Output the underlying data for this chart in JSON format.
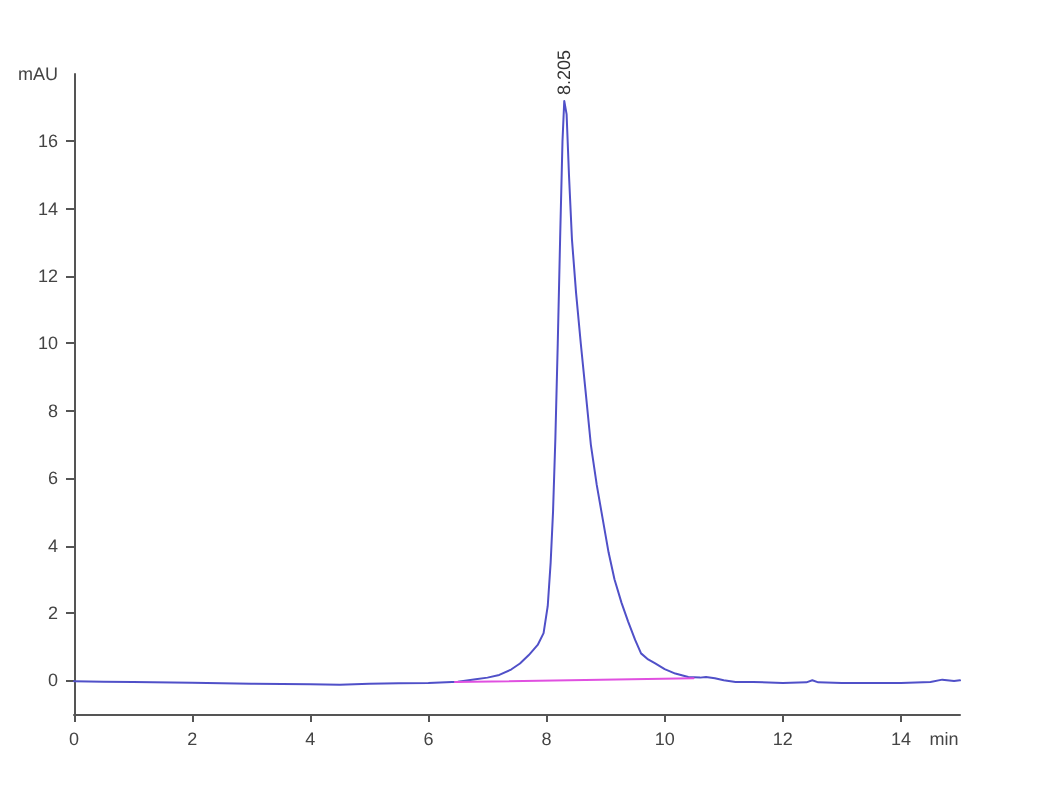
{
  "chart_data": {
    "type": "line",
    "xlabel": "min",
    "ylabel": "mAU",
    "xlim": [
      0,
      15
    ],
    "ylim": [
      -1,
      18
    ],
    "xticks": [
      0,
      2,
      4,
      6,
      8,
      10,
      12,
      14
    ],
    "yticks": [
      0,
      2,
      4,
      6,
      8,
      10,
      12,
      14,
      16
    ],
    "marker": "none",
    "line_style": "solid",
    "series": [
      {
        "color": "#5050c8",
        "x": [
          0,
          0.5,
          1,
          2,
          3,
          4,
          4.5,
          5,
          5.5,
          6,
          6.5,
          6.8,
          7,
          7.2,
          7.4,
          7.55,
          7.7,
          7.85,
          7.95,
          8.02,
          8.07,
          8.11,
          8.15,
          8.19,
          8.23,
          8.27,
          8.3,
          8.34,
          8.38,
          8.43,
          8.5,
          8.58,
          8.66,
          8.75,
          8.85,
          8.95,
          9.05,
          9.15,
          9.27,
          9.38,
          9.5,
          9.6,
          9.72,
          9.84,
          10,
          10.18,
          10.4,
          10.6,
          10.7,
          10.85,
          11,
          11.2,
          11.5,
          12,
          12.4,
          12.5,
          12.6,
          13,
          14,
          14.5,
          14.7,
          14.9,
          15
        ],
        "values": [
          -0.03,
          -0.04,
          -0.05,
          -0.07,
          -0.1,
          -0.12,
          -0.13,
          -0.1,
          -0.09,
          -0.08,
          -0.04,
          0.03,
          0.08,
          0.16,
          0.32,
          0.5,
          0.75,
          1.05,
          1.4,
          2.2,
          3.5,
          5,
          7.2,
          10,
          13.1,
          16,
          17.2,
          16.8,
          15,
          13.1,
          11.5,
          10,
          8.6,
          7,
          5.8,
          4.8,
          3.8,
          3,
          2.3,
          1.75,
          1.2,
          0.8,
          0.62,
          0.5,
          0.33,
          0.2,
          0.1,
          0.08,
          0.1,
          0.06,
          0,
          -0.05,
          -0.05,
          -0.08,
          -0.06,
          0,
          -0.06,
          -0.08,
          -0.08,
          -0.05,
          0.02,
          -0.02,
          0
        ]
      },
      {
        "color": "#e050e0",
        "x": [
          6.45,
          10.49
        ],
        "values": [
          -0.05,
          0.06
        ]
      }
    ],
    "annotations": [
      {
        "text": "8.205",
        "x": 8.3,
        "y": 17.2
      }
    ]
  }
}
